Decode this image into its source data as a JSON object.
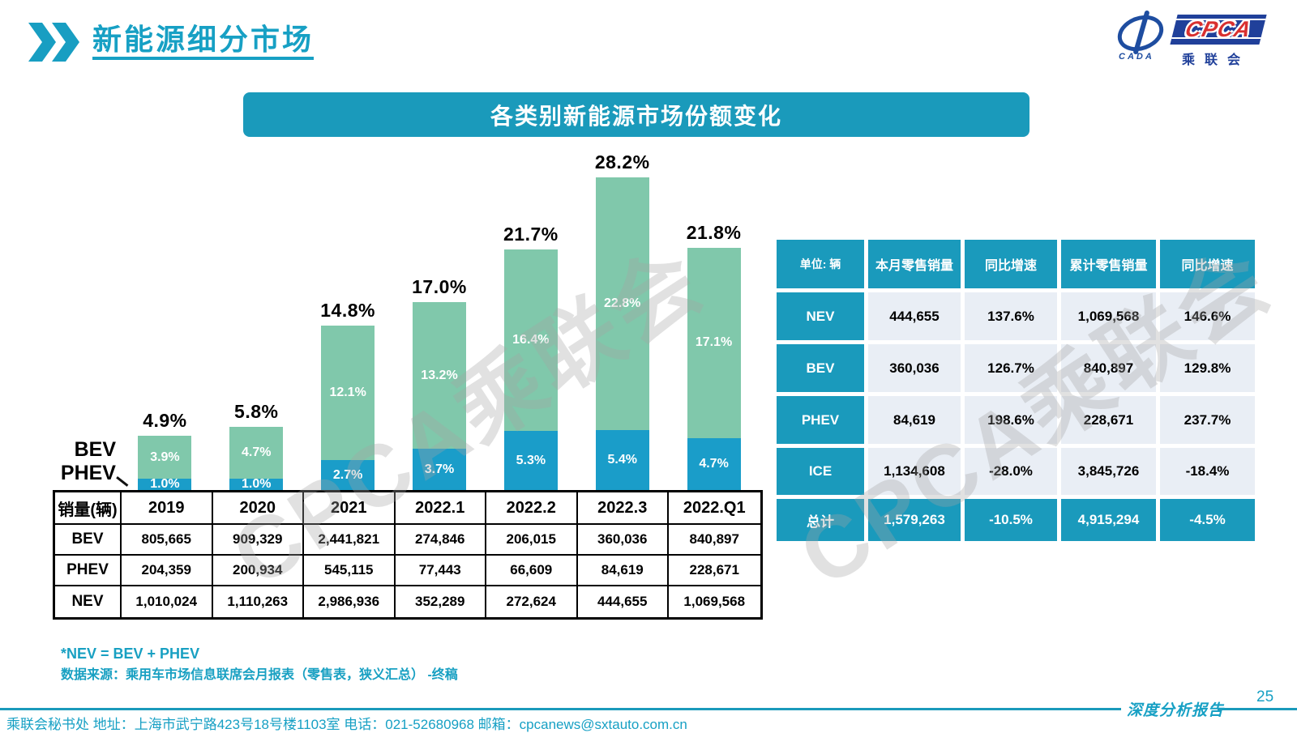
{
  "page": {
    "title": "新能源细分市场",
    "page_number": "25",
    "report_label": "深度分析报告",
    "footer_address": "乘联会秘书处  地址：上海市武宁路423号18号楼1103室 电话：021-52680968  邮箱：cpcanews@sxtauto.com.cn",
    "watermark": "CPCA乘联会"
  },
  "logo": {
    "cpca": "CPCA",
    "cada": "CADA",
    "chinese": "乘联会"
  },
  "banner": {
    "title": "各类别新能源市场份额变化"
  },
  "legend": {
    "bev": "BEV",
    "phev": "PHEV"
  },
  "notes": {
    "line1": "*NEV = BEV + PHEV",
    "line2": "数据来源：乘用车市场信息联席会月报表（零售表，狭义汇总） -终稿"
  },
  "chart_data": {
    "type": "bar",
    "stacked": true,
    "title": "各类别新能源市场份额变化",
    "categories": [
      "2019",
      "2020",
      "2021",
      "2022.1",
      "2022.2",
      "2022.3",
      "2022.Q1"
    ],
    "series": [
      {
        "name": "PHEV",
        "color": "#1A9DC9",
        "values": [
          1.0,
          1.0,
          2.7,
          3.7,
          5.3,
          5.4,
          4.7
        ]
      },
      {
        "name": "BEV",
        "color": "#80C8AB",
        "values": [
          3.9,
          4.7,
          12.1,
          13.2,
          16.4,
          22.8,
          17.1
        ]
      }
    ],
    "totals": [
      "4.9%",
      "5.8%",
      "14.8%",
      "17.0%",
      "21.7%",
      "28.2%",
      "21.8%"
    ],
    "unit": "%",
    "ylim": [
      0,
      30
    ],
    "grid": false,
    "legend_position": "left"
  },
  "sales_table": {
    "header_label": "销量(辆)",
    "columns": [
      "2019",
      "2020",
      "2021",
      "2022.1",
      "2022.2",
      "2022.3",
      "2022.Q1"
    ],
    "rows": [
      {
        "label": "BEV",
        "values": [
          "805,665",
          "909,329",
          "2,441,821",
          "274,846",
          "206,015",
          "360,036",
          "840,897"
        ]
      },
      {
        "label": "PHEV",
        "values": [
          "204,359",
          "200,934",
          "545,115",
          "77,443",
          "66,609",
          "84,619",
          "228,671"
        ]
      },
      {
        "label": "NEV",
        "values": [
          "1,010,024",
          "1,110,263",
          "2,986,936",
          "352,289",
          "272,624",
          "444,655",
          "1,069,568"
        ]
      }
    ]
  },
  "summary_table": {
    "unit_label": "单位: 辆",
    "columns": [
      "本月零售销量",
      "同比增速",
      "累计零售销量",
      "同比增速"
    ],
    "rows": [
      {
        "label": "NEV",
        "highlight": false,
        "values": [
          "444,655",
          "137.6%",
          "1,069,568",
          "146.6%"
        ]
      },
      {
        "label": "BEV",
        "highlight": false,
        "values": [
          "360,036",
          "126.7%",
          "840,897",
          "129.8%"
        ]
      },
      {
        "label": "PHEV",
        "highlight": false,
        "values": [
          "84,619",
          "198.6%",
          "228,671",
          "237.7%"
        ]
      },
      {
        "label": "ICE",
        "highlight": false,
        "values": [
          "1,134,608",
          "-28.0%",
          "3,845,726",
          "-18.4%"
        ]
      },
      {
        "label": "总计",
        "highlight": true,
        "values": [
          "1,579,263",
          "-10.5%",
          "4,915,294",
          "-4.5%"
        ]
      }
    ]
  },
  "colors": {
    "accent_teal": "#1A9ABC",
    "bar_green": "#80C8AB",
    "bar_blue": "#1A9DC9",
    "logo_blue": "#20409A",
    "logo_red": "#D93030",
    "summary_cell_bg": "#E9EEF5"
  }
}
